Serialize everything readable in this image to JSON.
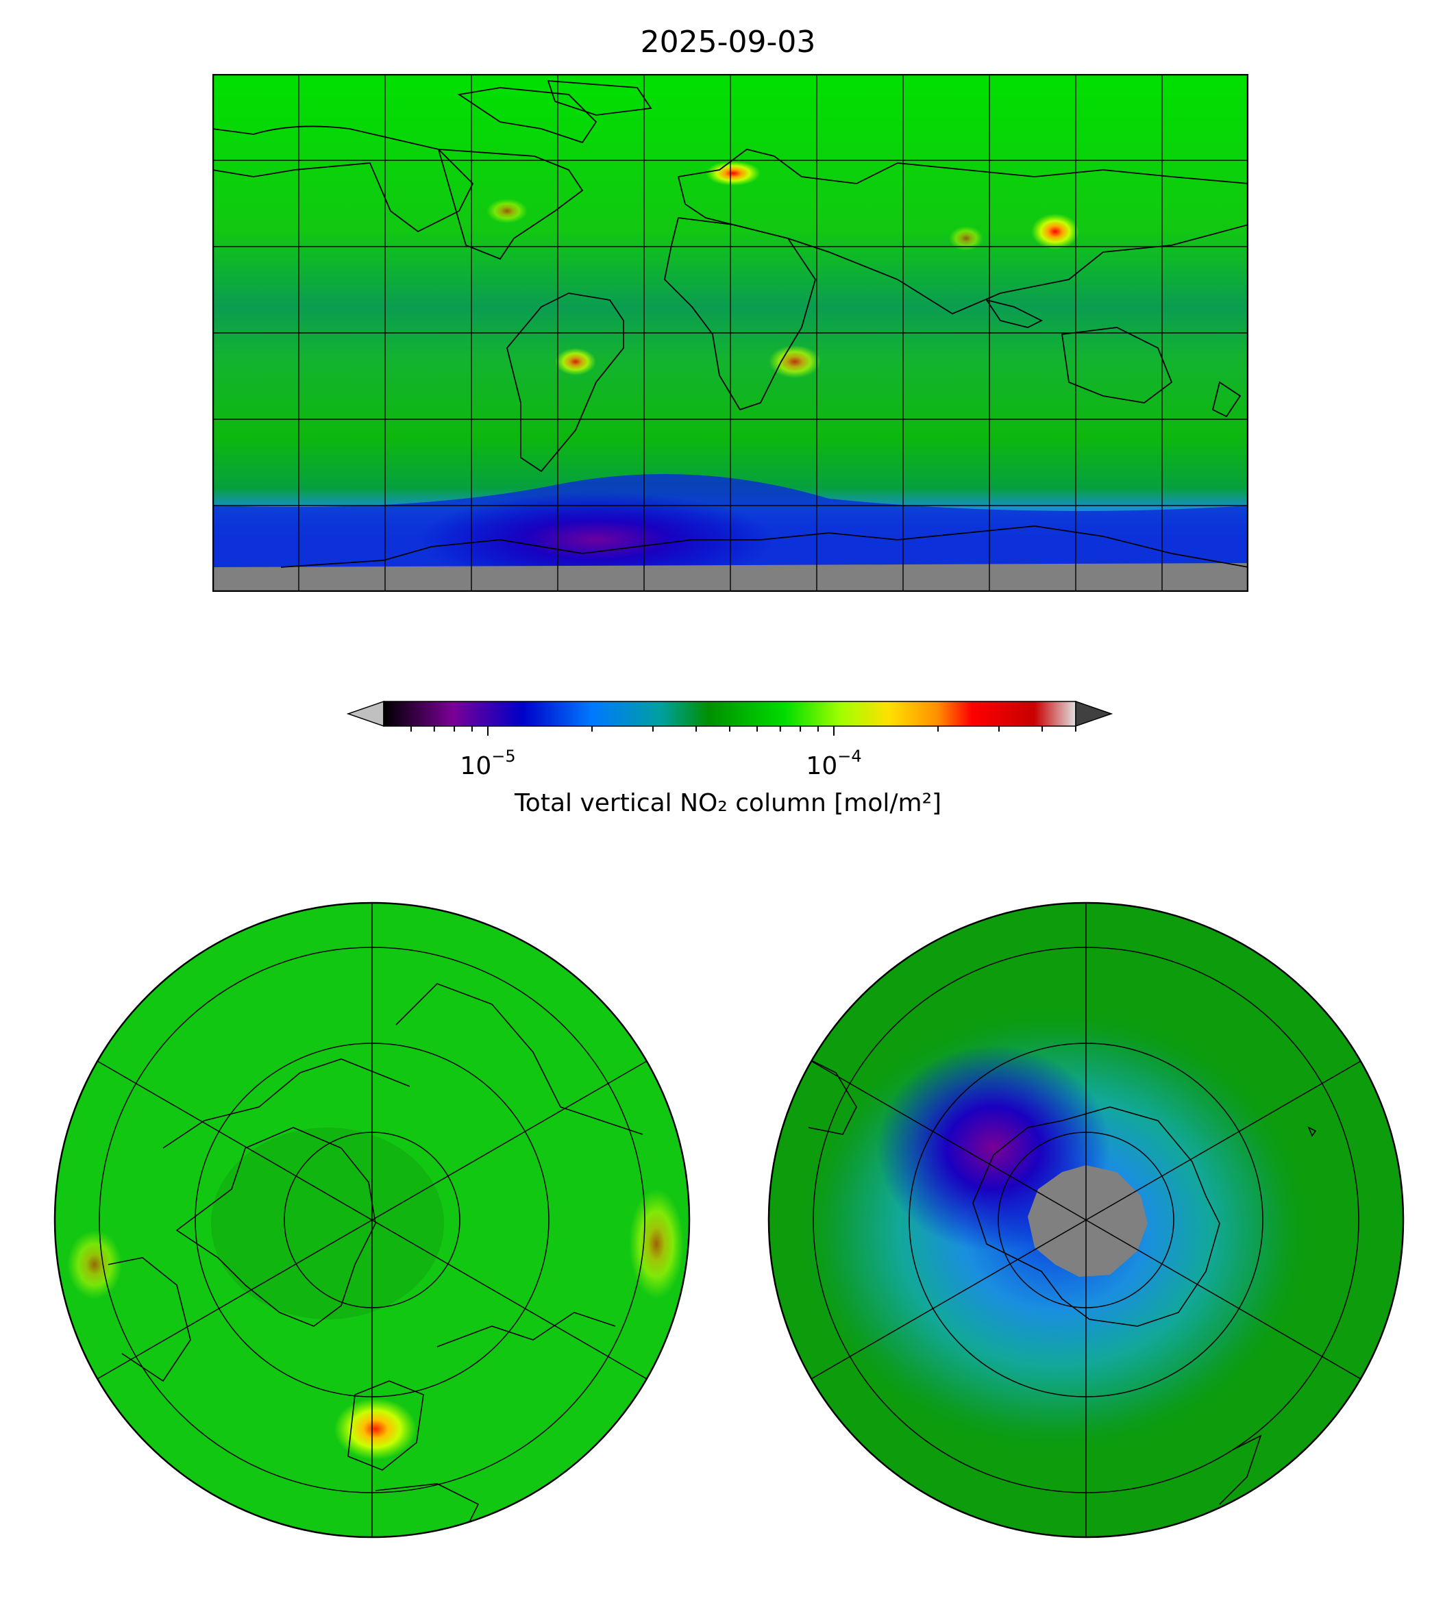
{
  "title": "2025-09-03",
  "colorbar": {
    "label": "Total vertical NO₂ column [mol/m²]",
    "scale": "log",
    "ticks": [
      {
        "base": "10",
        "exp": "−5",
        "value": 1e-05
      },
      {
        "base": "10",
        "exp": "−4",
        "value": 0.0001
      }
    ],
    "range": [
      5e-06,
      0.0005
    ],
    "extend": "both",
    "stops": [
      "#000000",
      "#7a0096",
      "#0000c8",
      "#0078ff",
      "#00a0a0",
      "#009000",
      "#00dc00",
      "#a0ff00",
      "#ffe000",
      "#ff9000",
      "#ff0000",
      "#c80000",
      "#e0e0e0"
    ],
    "under_color": "#c0c0c0",
    "over_color": "#404040"
  },
  "maps": {
    "world": {
      "projection": "equirectangular",
      "background": "#12c712",
      "nodata_color": "#808080"
    },
    "north": {
      "projection": "north-polar",
      "background": "#12c712"
    },
    "south": {
      "projection": "south-polar",
      "background": "#0c9c0c",
      "nodata_color": "#808080"
    }
  }
}
